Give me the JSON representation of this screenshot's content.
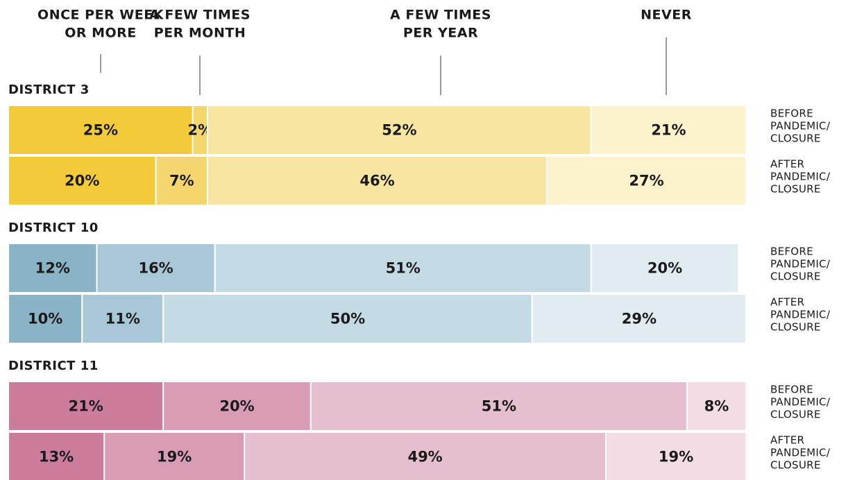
{
  "chart_data": {
    "type": "stacked-bar-100",
    "xlim": [
      0,
      100
    ],
    "categories": [
      [
        "ONCE PER WEEK",
        "OR MORE"
      ],
      [
        "A FEW TIMES",
        "PER MONTH"
      ],
      [
        "A FEW TIMES",
        "PER YEAR"
      ],
      [
        "NEVER"
      ]
    ],
    "row_labels": [
      [
        "BEFORE",
        "PANDEMIC/",
        "CLOSURE"
      ],
      [
        "AFTER",
        "PANDEMIC/",
        "CLOSURE"
      ]
    ],
    "groups": [
      {
        "name": "DISTRICT 3",
        "colors": [
          "#f3cb3a",
          "#f5d56d",
          "#f8e5a0",
          "#fcf3cd"
        ],
        "rows": [
          {
            "values": [
              25,
              2,
              52,
              21
            ],
            "value_labels": [
              "25%",
              "2%",
              "52%",
              "21%"
            ]
          },
          {
            "values": [
              20,
              7,
              46,
              27
            ],
            "value_labels": [
              "20%",
              "7%",
              "46%",
              "27%"
            ]
          }
        ]
      },
      {
        "name": "DISTRICT 10",
        "colors": [
          "#8ab4c6",
          "#a8c8d7",
          "#c4dae4",
          "#e1ecf1"
        ],
        "rows": [
          {
            "values": [
              12,
              16,
              51,
              20
            ],
            "value_labels": [
              "12%",
              "16%",
              "51%",
              "20%"
            ]
          },
          {
            "values": [
              10,
              11,
              50,
              29
            ],
            "value_labels": [
              "10%",
              "11%",
              "50%",
              "29%"
            ]
          }
        ]
      },
      {
        "name": "DISTRICT 11",
        "colors": [
          "#cb7d9b",
          "#d99cb5",
          "#e6bfce",
          "#f2dde5"
        ],
        "rows": [
          {
            "values": [
              21,
              20,
              51,
              8
            ],
            "value_labels": [
              "21%",
              "20%",
              "51%",
              "8%"
            ]
          },
          {
            "values": [
              13,
              19,
              49,
              19
            ],
            "value_labels": [
              "13%",
              "19%",
              "49%",
              "19%"
            ]
          }
        ]
      }
    ]
  }
}
